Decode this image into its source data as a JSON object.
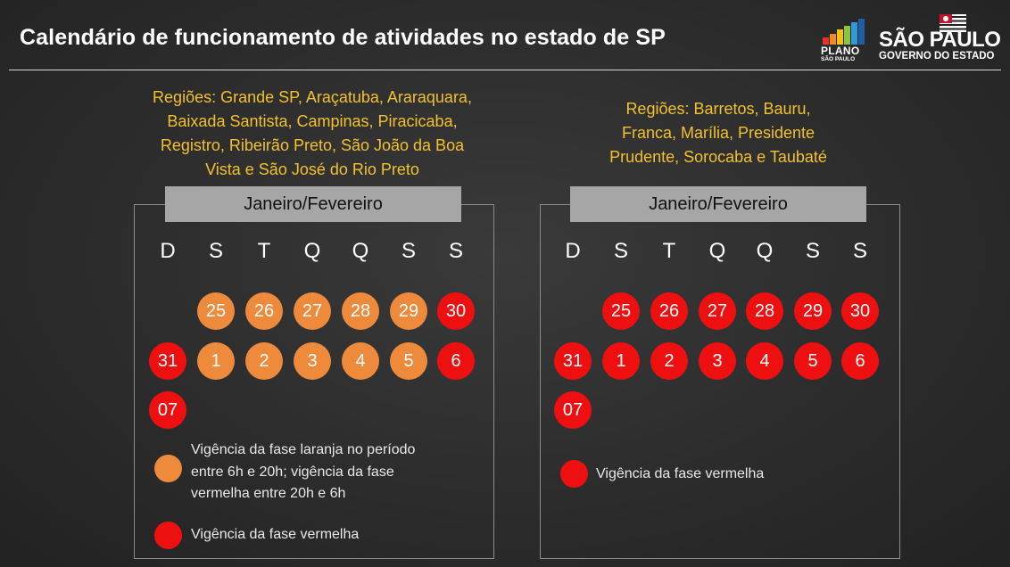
{
  "title": "Calendário de funcionamento de atividades no estado de SP",
  "logos": {
    "plano_word": "PLANO",
    "plano_sub": "SÃO PAULO",
    "sp_big": "SÃO PAULO",
    "sp_small": "GOVERNO DO ESTADO"
  },
  "colors": {
    "orange": "#ed8a3c",
    "red": "#ee1010",
    "region_text": "#f2c12e",
    "header_bg": "#a6a6a6"
  },
  "weekdays": [
    "D",
    "S",
    "T",
    "Q",
    "Q",
    "S",
    "S"
  ],
  "left": {
    "regions_lines": [
      "Regiões: Grande SP, Araçatuba, Araraquara,",
      "Baixada Santista, Campinas, Piracicaba,",
      "Registro, Ribeirão Preto, São João da Boa",
      "Vista e São José do Rio Preto"
    ],
    "header": "Janeiro/Fevereiro",
    "rows": [
      [
        null,
        {
          "label": "25",
          "phase": "orange"
        },
        {
          "label": "26",
          "phase": "orange"
        },
        {
          "label": "27",
          "phase": "orange"
        },
        {
          "label": "28",
          "phase": "orange"
        },
        {
          "label": "29",
          "phase": "orange"
        },
        {
          "label": "30",
          "phase": "red"
        }
      ],
      [
        {
          "label": "31",
          "phase": "red"
        },
        {
          "label": "1",
          "phase": "orange"
        },
        {
          "label": "2",
          "phase": "orange"
        },
        {
          "label": "3",
          "phase": "orange"
        },
        {
          "label": "4",
          "phase": "orange"
        },
        {
          "label": "5",
          "phase": "orange"
        },
        {
          "label": "6",
          "phase": "red"
        }
      ],
      [
        {
          "label": "07",
          "phase": "red"
        },
        null,
        null,
        null,
        null,
        null,
        null
      ]
    ],
    "legend_orange_lines": [
      "Vigência da fase laranja no período",
      "entre 6h e 20h; vigência da fase",
      "vermelha entre 20h e 6h"
    ],
    "legend_red": "Vigência da fase vermelha"
  },
  "right": {
    "regions_lines": [
      "Regiões: Barretos, Bauru,",
      "Franca, Marília, Presidente",
      "Prudente, Sorocaba e Taubaté"
    ],
    "header": "Janeiro/Fevereiro",
    "rows": [
      [
        null,
        {
          "label": "25",
          "phase": "red"
        },
        {
          "label": "26",
          "phase": "red"
        },
        {
          "label": "27",
          "phase": "red"
        },
        {
          "label": "28",
          "phase": "red"
        },
        {
          "label": "29",
          "phase": "red"
        },
        {
          "label": "30",
          "phase": "red"
        }
      ],
      [
        {
          "label": "31",
          "phase": "red"
        },
        {
          "label": "1",
          "phase": "red"
        },
        {
          "label": "2",
          "phase": "red"
        },
        {
          "label": "3",
          "phase": "red"
        },
        {
          "label": "4",
          "phase": "red"
        },
        {
          "label": "5",
          "phase": "red"
        },
        {
          "label": "6",
          "phase": "red"
        }
      ],
      [
        {
          "label": "07",
          "phase": "red"
        },
        null,
        null,
        null,
        null,
        null,
        null
      ]
    ],
    "legend_red": "Vigência da fase vermelha"
  }
}
